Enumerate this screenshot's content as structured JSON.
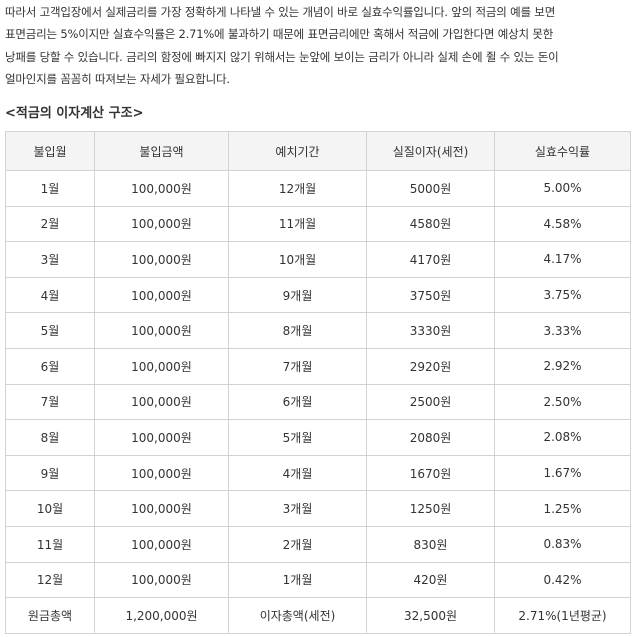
{
  "article": {
    "paragraph_lines": [
      "따라서 고객입장에서 실제금리를 가장 정확하게 나타낼 수 있는 개념이 바로 실효수익률입니다. 앞의 적금의 예를 보면",
      "표면금리는 5%이지만 실효수익률은 2.71%에 불과하기 때문에 표면금리에만 혹해서 적금에 가입한다면 예상치 못한",
      "낭패를 당할 수 있습니다. 금리의 함정에 빠지지 않기 위해서는 눈앞에 보이는 금리가 아니라 실제 손에 쥘 수 있는 돈이",
      "얼마인지를 꼼꼼히 따져보는 자세가 필요합니다."
    ],
    "section_heading": "<적금의 이자계산 구조>"
  },
  "table": {
    "headers": [
      "불입월",
      "불입금액",
      "예치기간",
      "실질이자(세전)",
      "실효수익률"
    ],
    "rows": [
      [
        "1월",
        "100,000원",
        "12개월",
        "5000원",
        "5.00%"
      ],
      [
        "2월",
        "100,000원",
        "11개월",
        "4580원",
        "4.58%"
      ],
      [
        "3월",
        "100,000원",
        "10개월",
        "4170원",
        "4.17%"
      ],
      [
        "4월",
        "100,000원",
        "9개월",
        "3750원",
        "3.75%"
      ],
      [
        "5월",
        "100,000원",
        "8개월",
        "3330원",
        "3.33%"
      ],
      [
        "6월",
        "100,000원",
        "7개월",
        "2920원",
        "2.92%"
      ],
      [
        "7월",
        "100,000원",
        "6개월",
        "2500원",
        "2.50%"
      ],
      [
        "8월",
        "100,000원",
        "5개월",
        "2080원",
        "2.08%"
      ],
      [
        "9월",
        "100,000원",
        "4개월",
        "1670원",
        "1.67%"
      ],
      [
        "10월",
        "100,000원",
        "3개월",
        "1250원",
        "1.25%"
      ],
      [
        "11월",
        "100,000원",
        "2개월",
        "830원",
        "0.83%"
      ],
      [
        "12월",
        "100,000원",
        "1개월",
        "420원",
        "0.42%"
      ]
    ],
    "total_row": [
      "원금총액",
      "1,200,000원",
      "이자총액(세전)",
      "32,500원",
      "2.71%(1년평균)"
    ]
  },
  "colors": {
    "text": "#333333",
    "border": "#d3d3d3",
    "header_bg": "#f4f4f4"
  }
}
